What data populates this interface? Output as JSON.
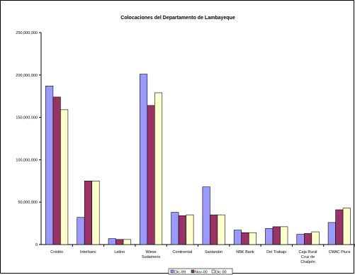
{
  "chart_data": {
    "type": "bar",
    "title": "Colocaciones del Departamento de Lambayeque",
    "categories": [
      [
        "Crédito"
      ],
      [
        "Interbanc"
      ],
      [
        "Latino"
      ],
      [
        "Wiese",
        "Sudameris"
      ],
      [
        "Continental"
      ],
      [
        "Santander"
      ],
      [
        "NBK Bank"
      ],
      [
        "Del Trabajo"
      ],
      [
        "Caja Rural",
        "Cruz de",
        "Chalpón"
      ],
      [
        "CMAC Piura"
      ]
    ],
    "series": [
      {
        "name": "Dic-99",
        "color": "#9999ff",
        "values": [
          187000000,
          32000000,
          7000000,
          201000000,
          38000000,
          68000000,
          17000000,
          19000000,
          12000000,
          26000000
        ]
      },
      {
        "name": "Nov-00",
        "color": "#993366",
        "values": [
          174000000,
          75000000,
          6000000,
          164000000,
          34000000,
          35000000,
          14000000,
          21000000,
          13000000,
          41000000
        ]
      },
      {
        "name": "Dic 00",
        "color": "#ffffcc",
        "values": [
          159000000,
          75000000,
          6000000,
          179000000,
          35000000,
          35000000,
          14000000,
          21000000,
          15000000,
          43000000
        ]
      }
    ],
    "yticks": [
      "0",
      "50,000,000",
      "100,000,000",
      "150,000,000",
      "200,000,000",
      "250,000,000"
    ],
    "ylim": [
      0,
      250000000
    ],
    "grid": false,
    "legend": "bottom"
  }
}
